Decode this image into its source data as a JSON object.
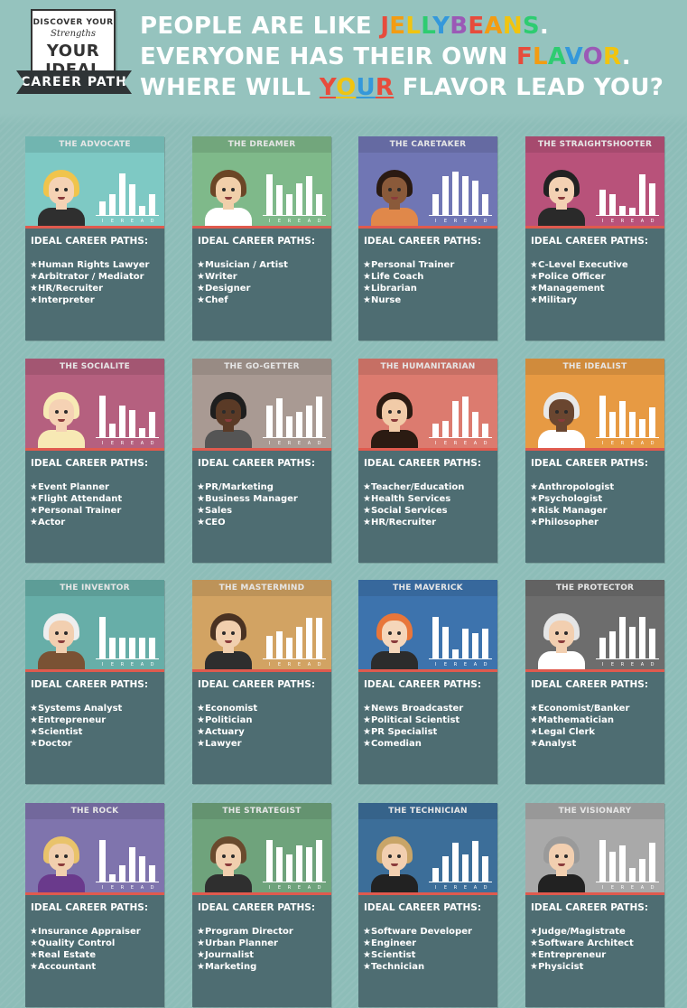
{
  "logo": {
    "line1": "DISCOVER YOUR",
    "line2": "Strengths",
    "line3": "YOUR IDEAL",
    "line4": "CAREER PATH"
  },
  "headline": {
    "l1_pre": "PEOPLE ARE LIKE ",
    "l1_word": [
      "J",
      "E",
      "L",
      "L",
      "Y",
      "B",
      "E",
      "A",
      "N",
      "S"
    ],
    "l1_end": ".",
    "l2_pre": "EVERYONE HAS THEIR OWN ",
    "l2_word": [
      "F",
      "L",
      "A",
      "V",
      "O",
      "R"
    ],
    "l2_end": ".",
    "l3_pre": "WHERE WILL ",
    "l3_word": [
      "Y",
      "O",
      "U",
      "R"
    ],
    "l3_post": " FLAVOR LEAD YOU?"
  },
  "ideal_label": "IDEAL CAREER PATHS:",
  "chart_letters": [
    "I",
    "E",
    "R",
    "E",
    "A",
    "D"
  ],
  "cards": [
    {
      "title": "THE ADVOCATE",
      "color": "#7ec9c4",
      "hair": "#f0c44c",
      "skin": "#f5d2b4",
      "body": "#2f2f2f",
      "bars": [
        0.3,
        0.45,
        0.92,
        0.68,
        0.2,
        0.45
      ],
      "careers": [
        "★Human Rights Lawyer",
        "★Arbitrator / Mediator",
        "★HR/Recruiter",
        "★Interpreter"
      ]
    },
    {
      "title": "THE DREAMER",
      "color": "#7fb98a",
      "hair": "#6b4626",
      "skin": "#f1cfaa",
      "body": "#ffffff",
      "bars": [
        0.9,
        0.65,
        0.45,
        0.7,
        0.85,
        0.45
      ],
      "careers": [
        "★Musician / Artist",
        "★Writer",
        "★Designer",
        "★Chef"
      ]
    },
    {
      "title": "THE CARETAKER",
      "color": "#7076b4",
      "hair": "#2a1a12",
      "skin": "#8a5a3a",
      "body": "#e0884a",
      "bars": [
        0.45,
        0.85,
        0.95,
        0.85,
        0.75,
        0.45
      ],
      "careers": [
        "★Personal Trainer",
        "★Life Coach",
        "★Librarian",
        "★Nurse"
      ]
    },
    {
      "title": "THE STRAIGHTSHOOTER",
      "color": "#b8527a",
      "hair": "#222222",
      "skin": "#f3d1b3",
      "body": "#2a2a2a",
      "bars": [
        0.55,
        0.45,
        0.2,
        0.15,
        0.9,
        0.7
      ],
      "careers": [
        "★C-Level Executive",
        "★Police Officer",
        "★Management",
        "★Military"
      ]
    },
    {
      "title": "THE SOCIALITE",
      "color": "#b5607f",
      "hair": "#f7e9b4",
      "skin": "#f5d2b4",
      "body": "#f7e9b4",
      "bars": [
        0.92,
        0.3,
        0.7,
        0.6,
        0.2,
        0.55
      ],
      "careers": [
        "★Event Planner",
        "★Flight Attendant",
        "★Personal Trainer",
        "★Actor"
      ]
    },
    {
      "title": "THE GO-GETTER",
      "color": "#a99a93",
      "hair": "#1e1e1e",
      "skin": "#5a3a26",
      "body": "#555555",
      "bars": [
        0.7,
        0.85,
        0.45,
        0.55,
        0.7,
        0.9
      ],
      "careers": [
        "★PR/Marketing",
        "★Business Manager",
        "★Sales",
        "★CEO"
      ]
    },
    {
      "title": "THE HUMANITARIAN",
      "color": "#dc7b6f",
      "hair": "#2b1b12",
      "skin": "#f1cba8",
      "body": "#2b1b12",
      "bars": [
        0.3,
        0.35,
        0.8,
        0.9,
        0.55,
        0.3
      ],
      "careers": [
        "★Teacher/Education",
        "★Health Services",
        "★Social Services",
        "★HR/Recruiter"
      ]
    },
    {
      "title": "THE IDEALIST",
      "color": "#e79a43",
      "hair": "#e8e8e8",
      "skin": "#6a4630",
      "body": "#ffffff",
      "bars": [
        0.92,
        0.55,
        0.8,
        0.55,
        0.4,
        0.65
      ],
      "careers": [
        "★Anthropologist",
        "★Psychologist",
        "★Risk Manager",
        "★Philosopher"
      ]
    },
    {
      "title": "THE INVENTOR",
      "color": "#67aea8",
      "hair": "#eeeeee",
      "skin": "#f2cfb0",
      "body": "#7a5234",
      "bars": [
        0.92,
        0.45,
        0.45,
        0.45,
        0.45,
        0.45
      ],
      "careers": [
        "★Systems Analyst",
        "★Entrepreneur",
        "★Scientist",
        "★Doctor"
      ]
    },
    {
      "title": "THE MASTERMIND",
      "color": "#d2a363",
      "hair": "#4a3222",
      "skin": "#f1cfae",
      "body": "#2e2e2e",
      "bars": [
        0.5,
        0.6,
        0.45,
        0.7,
        0.9,
        0.9
      ],
      "careers": [
        "★Economist",
        "★Politician",
        "★Actuary",
        "★Lawyer"
      ]
    },
    {
      "title": "THE MAVERICK",
      "color": "#3d73ad",
      "hair": "#e8763a",
      "skin": "#f5d6ba",
      "body": "#2c2c2c",
      "bars": [
        0.92,
        0.7,
        0.2,
        0.65,
        0.55,
        0.65
      ],
      "careers": [
        "★News Broadcaster",
        "★Political Scientist",
        "★PR Specialist",
        "★Comedian"
      ]
    },
    {
      "title": "THE PROTECTOR",
      "color": "#6d6d6d",
      "hair": "#e5e5e5",
      "skin": "#f2cfb0",
      "body": "#ffffff",
      "bars": [
        0.45,
        0.6,
        0.92,
        0.7,
        0.92,
        0.65
      ],
      "careers": [
        "★Economist/Banker",
        "★Mathematician",
        "★Legal Clerk",
        "★Analyst"
      ]
    },
    {
      "title": "THE ROCK",
      "color": "#7f74ad",
      "hair": "#e9c36b",
      "skin": "#f1cfae",
      "body": "#6a3a8c",
      "bars": [
        0.92,
        0.15,
        0.35,
        0.75,
        0.55,
        0.35
      ],
      "careers": [
        "★Insurance Appraiser",
        "★Quality Control",
        "★Real Estate",
        "★Accountant"
      ]
    },
    {
      "title": "THE STRATEGIST",
      "color": "#6fa37c",
      "hair": "#6a4a2e",
      "skin": "#f1cfae",
      "body": "#2f2f2f",
      "bars": [
        0.92,
        0.75,
        0.6,
        0.8,
        0.75,
        0.92
      ],
      "careers": [
        "★Program Director",
        "★Urban Planner",
        "★Journalist",
        "★Marketing"
      ]
    },
    {
      "title": "THE TECHNICIAN",
      "color": "#3c6e99",
      "hair": "#c9a568",
      "skin": "#f2cfb0",
      "body": "#222222",
      "bars": [
        0.3,
        0.55,
        0.85,
        0.6,
        0.9,
        0.55
      ],
      "careers": [
        "★Software Developer",
        "★Engineer",
        "★Scientist",
        "★Technician"
      ]
    },
    {
      "title": "THE VISIONARY",
      "color": "#a9a9a9",
      "hair": "#9a9a9a",
      "skin": "#f2cfb0",
      "body": "#222222",
      "bars": [
        0.92,
        0.65,
        0.8,
        0.3,
        0.5,
        0.85
      ],
      "careers": [
        "★Judge/Magistrate",
        "★Software Architect",
        "★Entrepreneur",
        "★Physicist"
      ]
    }
  ]
}
